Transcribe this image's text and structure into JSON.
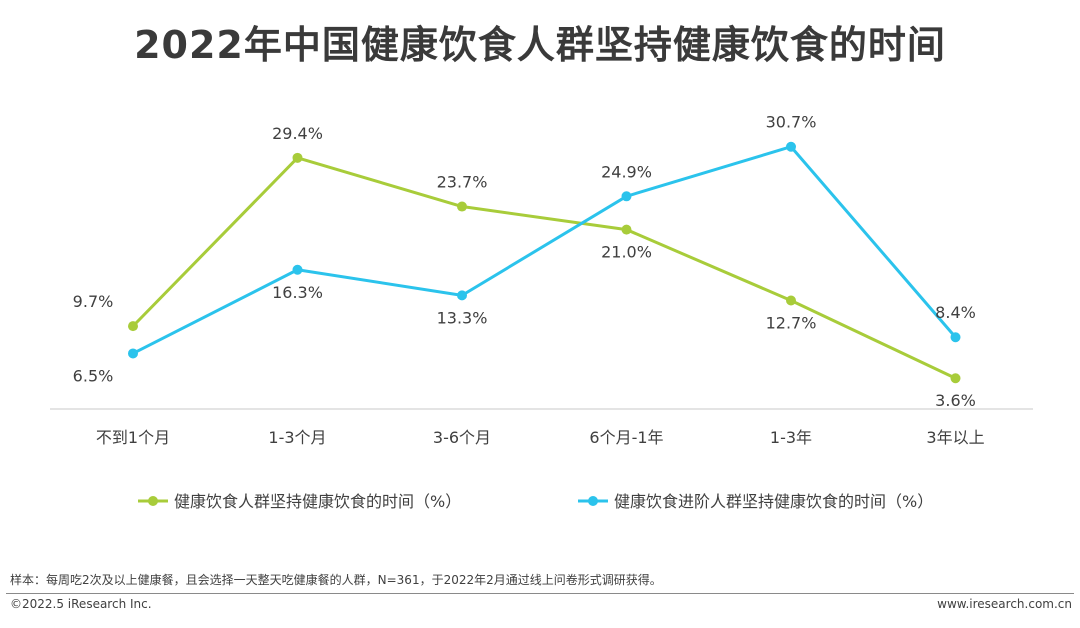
{
  "chart_data": {
    "type": "line",
    "title": "2022年中国健康饮食人群坚持健康饮食的时间",
    "categories": [
      "不到1个月",
      "1-3个月",
      "3-6个月",
      "6个月-1年",
      "1-3年",
      "3年以上"
    ],
    "ylim": [
      0,
      35
    ],
    "grid": false,
    "legend_position": "bottom",
    "series": [
      {
        "name": "健康饮食人群坚持健康饮食的时间（%）",
        "color": "#a8cc3a",
        "values": [
          9.7,
          29.4,
          23.7,
          21.0,
          12.7,
          3.6
        ],
        "labels": [
          "9.7%",
          "29.4%",
          "23.7%",
          "21.0%",
          "12.7%",
          "3.6%"
        ]
      },
      {
        "name": "健康饮食进阶人群坚持健康饮食的时间（%）",
        "color": "#2bc3ec",
        "values": [
          6.5,
          16.3,
          13.3,
          24.9,
          30.7,
          8.4
        ],
        "labels": [
          "6.5%",
          "16.3%",
          "13.3%",
          "24.9%",
          "30.7%",
          "8.4%"
        ]
      }
    ]
  },
  "footer": {
    "note": "样本：每周吃2次及以上健康餐，且会选择一天整天吃健康餐的人群，N=361，于2022年2月通过线上问卷形式调研获得。",
    "copyright": "©2022.5 iResearch Inc.",
    "website": "www.iresearch.com.cn"
  }
}
